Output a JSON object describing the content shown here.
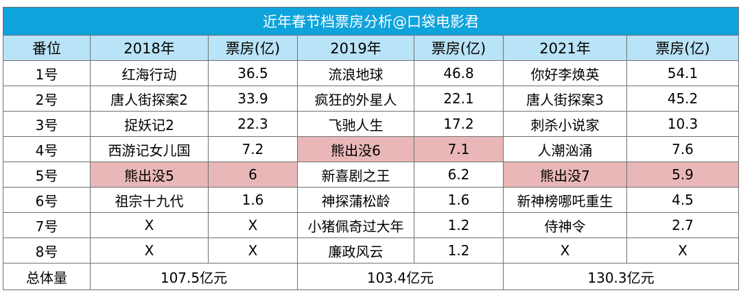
{
  "title": "近年春节档票房分析@口袋电影君",
  "headers": [
    "番位",
    "2018年",
    "票房(亿)",
    "2019年",
    "票房(亿)",
    "2021年",
    "票房(亿)"
  ],
  "rows": [
    [
      "1号",
      "红海行动",
      "36.5",
      "流浪地球",
      "46.8",
      "你好李焕英",
      "54.1"
    ],
    [
      "2号",
      "唐人街探案2",
      "33.9",
      "疯狂的外星人",
      "22.1",
      "唐人街探案3",
      "45.2"
    ],
    [
      "3号",
      "捉妖记2",
      "22.3",
      "飞驰人生",
      "17.2",
      "刺杀小说家",
      "10.3"
    ],
    [
      "4号",
      "西游记女儿国",
      "7.2",
      "熊出没6",
      "7.1",
      "人潮汹涌",
      "7.6"
    ],
    [
      "5号",
      "熊出没5",
      "6",
      "新喜剧之王",
      "6.2",
      "熊出没7",
      "5.9"
    ],
    [
      "6号",
      "祖宗十九代",
      "1.6",
      "神探蒲松龄",
      "1.6",
      "新神榜哪吒重生",
      "4.5"
    ],
    [
      "7号",
      "X",
      "X",
      "小猪佩奇过大年",
      "1.2",
      "侍神令",
      "2.7"
    ],
    [
      "8号",
      "X",
      "X",
      "廉政风云",
      "1.2",
      "X",
      "X"
    ]
  ],
  "total": {
    "label": "总体量",
    "y2018": "107.5亿元",
    "y2019": "103.4亿元",
    "y2021": "130.3亿元"
  },
  "highlight_color": "#e9b7b7",
  "header_color": "#0fa3dc",
  "subheader_color": "#b9e3f6"
}
